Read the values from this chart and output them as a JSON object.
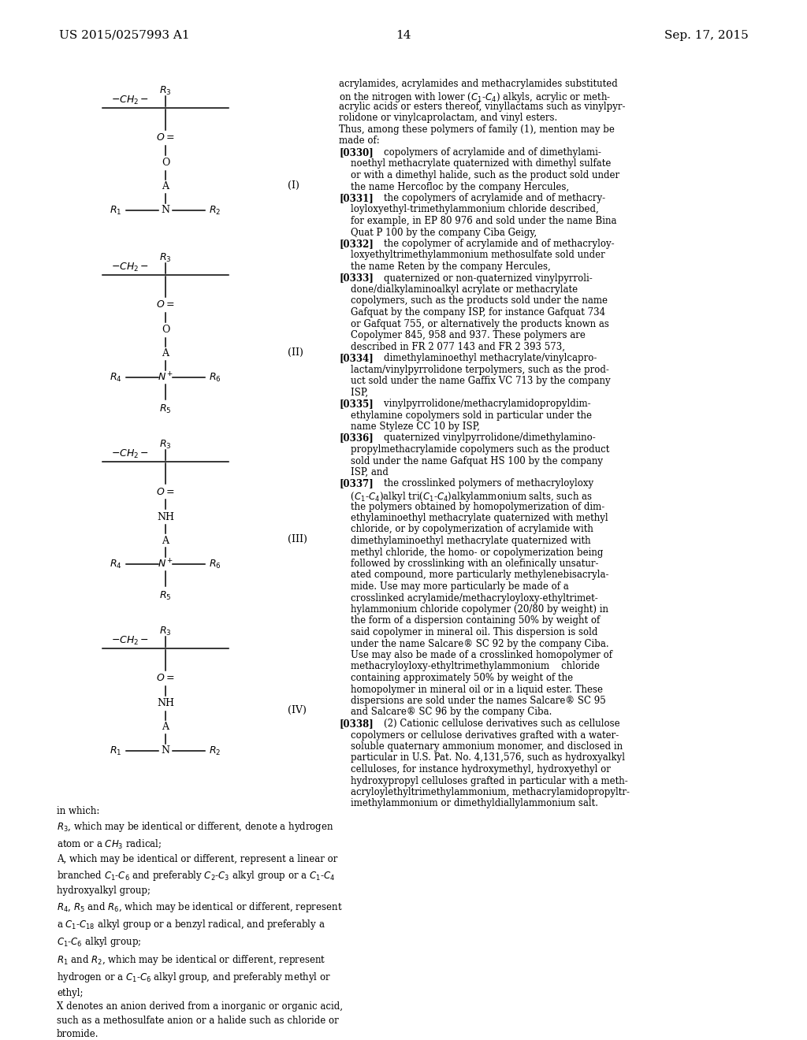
{
  "page_number": "14",
  "patent_number": "US 2015/0257993 A1",
  "patent_date": "Sep. 17, 2015",
  "bg_color": "#ffffff",
  "text_color": "#000000"
}
